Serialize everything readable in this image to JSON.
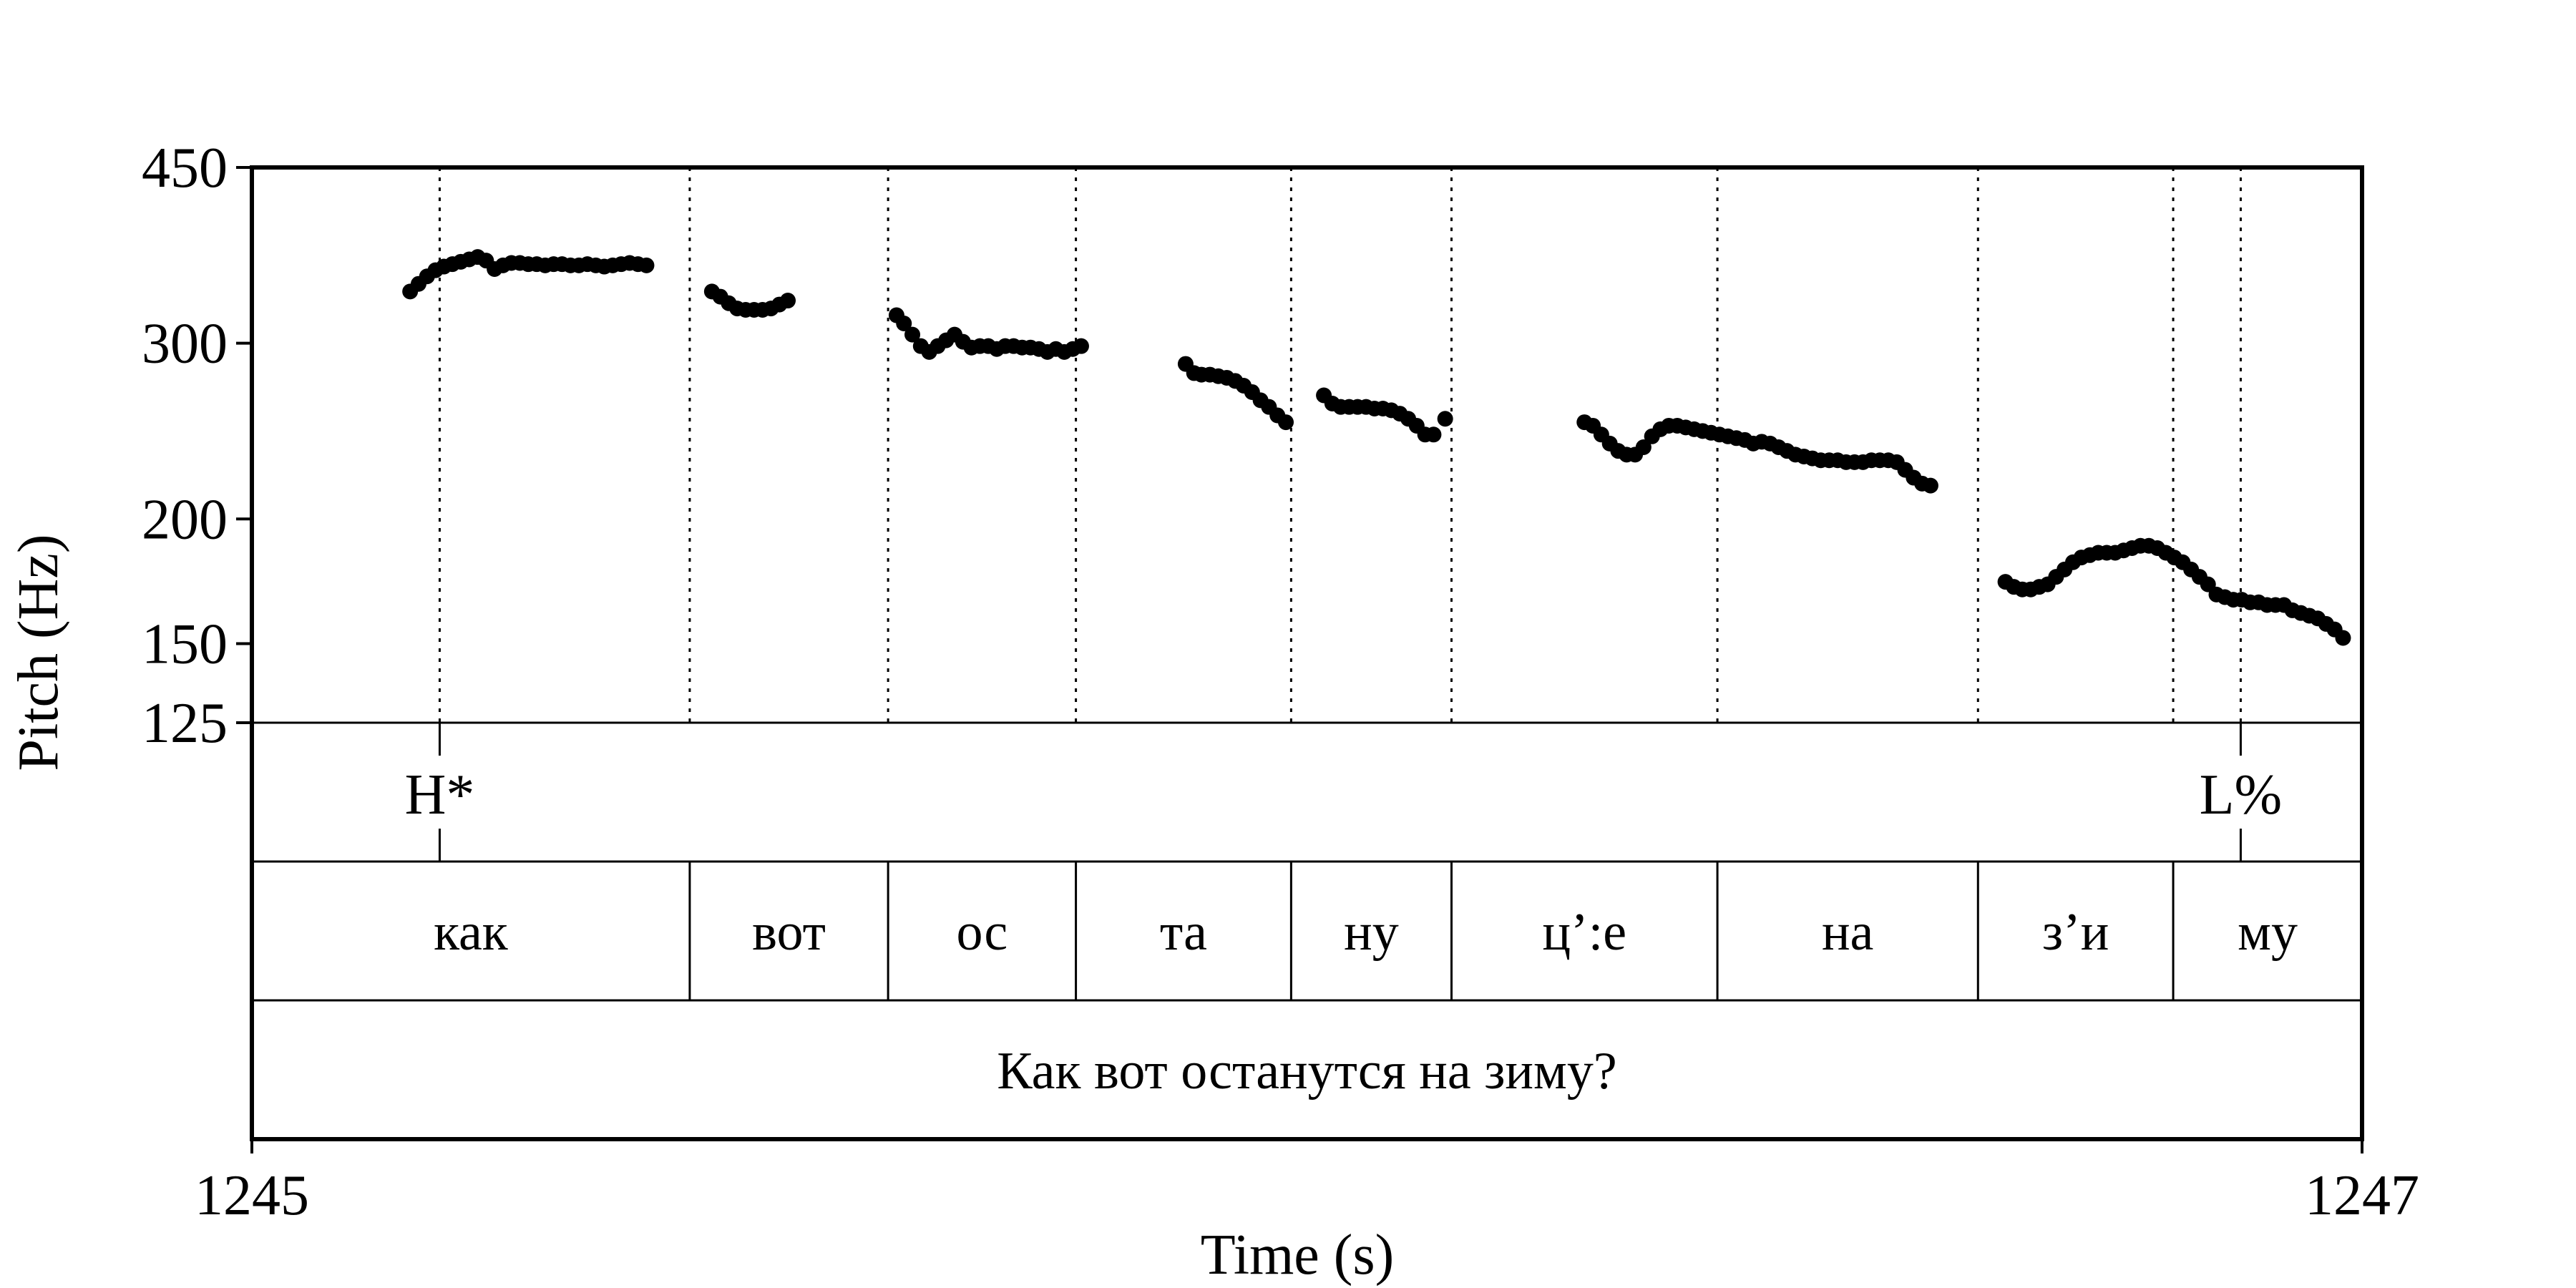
{
  "chart_data": {
    "type": "scatter",
    "title": "",
    "xlabel": "Time (s)",
    "ylabel": "Pitch (Hz)",
    "xlim": [
      1245,
      1247
    ],
    "ylim": [
      125,
      450
    ],
    "y_scale": "log",
    "x_ticks": [
      {
        "value": 1245,
        "label": "1245"
      },
      {
        "value": 1247,
        "label": "1247"
      }
    ],
    "y_ticks": [
      {
        "value": 450,
        "label": "450"
      },
      {
        "value": 300,
        "label": "300"
      },
      {
        "value": 200,
        "label": "200"
      },
      {
        "value": 150,
        "label": "150"
      },
      {
        "value": 125,
        "label": "125"
      }
    ],
    "tone_tier": [
      {
        "time": 1245.178,
        "label": "H*"
      },
      {
        "time": 1246.885,
        "label": "L%"
      }
    ],
    "syllable_tier": [
      {
        "start": 1245.0,
        "end": 1245.415,
        "label": "как"
      },
      {
        "start": 1245.415,
        "end": 1245.603,
        "label": "вот"
      },
      {
        "start": 1245.603,
        "end": 1245.781,
        "label": "ос"
      },
      {
        "start": 1245.781,
        "end": 1245.985,
        "label": "та"
      },
      {
        "start": 1245.985,
        "end": 1246.137,
        "label": "ну"
      },
      {
        "start": 1246.137,
        "end": 1246.389,
        "label": "ц’:е"
      },
      {
        "start": 1246.389,
        "end": 1246.636,
        "label": "на"
      },
      {
        "start": 1246.636,
        "end": 1246.821,
        "label": "з’и"
      },
      {
        "start": 1246.821,
        "end": 1247.0,
        "label": "му"
      }
    ],
    "sentence_tier": [
      {
        "start": 1245.0,
        "end": 1247.0,
        "label": "Как вот останутся на зиму?"
      }
    ],
    "series": [
      {
        "points": [
          [
            1245.15,
            338
          ],
          [
            1245.158,
            344
          ],
          [
            1245.166,
            350
          ],
          [
            1245.174,
            355
          ],
          [
            1245.182,
            358
          ],
          [
            1245.19,
            360
          ],
          [
            1245.198,
            362
          ],
          [
            1245.206,
            364
          ],
          [
            1245.214,
            366
          ],
          [
            1245.222,
            363
          ],
          [
            1245.23,
            356
          ],
          [
            1245.238,
            359
          ],
          [
            1245.246,
            361
          ],
          [
            1245.254,
            361
          ],
          [
            1245.262,
            360
          ],
          [
            1245.27,
            360
          ],
          [
            1245.278,
            359
          ],
          [
            1245.286,
            360
          ],
          [
            1245.294,
            360
          ],
          [
            1245.302,
            359
          ],
          [
            1245.31,
            359
          ],
          [
            1245.318,
            360
          ],
          [
            1245.326,
            359
          ],
          [
            1245.334,
            358
          ],
          [
            1245.342,
            359
          ],
          [
            1245.35,
            360
          ],
          [
            1245.358,
            361
          ],
          [
            1245.366,
            360
          ],
          [
            1245.374,
            359
          ]
        ]
      },
      {
        "points": [
          [
            1245.436,
            338
          ],
          [
            1245.444,
            334
          ],
          [
            1245.452,
            329
          ],
          [
            1245.46,
            325
          ],
          [
            1245.468,
            324
          ],
          [
            1245.476,
            324
          ],
          [
            1245.484,
            324
          ],
          [
            1245.492,
            325
          ],
          [
            1245.5,
            328
          ],
          [
            1245.508,
            331
          ]
        ]
      },
      {
        "points": [
          [
            1245.611,
            320
          ],
          [
            1245.618,
            314
          ],
          [
            1245.626,
            306
          ],
          [
            1245.634,
            298
          ],
          [
            1245.642,
            294
          ],
          [
            1245.65,
            298
          ],
          [
            1245.658,
            302
          ],
          [
            1245.666,
            306
          ],
          [
            1245.674,
            301
          ],
          [
            1245.682,
            297
          ],
          [
            1245.69,
            298
          ],
          [
            1245.698,
            298
          ],
          [
            1245.706,
            296
          ],
          [
            1245.714,
            298
          ],
          [
            1245.722,
            298
          ],
          [
            1245.73,
            297
          ],
          [
            1245.738,
            297
          ],
          [
            1245.746,
            296
          ],
          [
            1245.754,
            294
          ],
          [
            1245.762,
            296
          ],
          [
            1245.77,
            294
          ],
          [
            1245.778,
            296
          ],
          [
            1245.786,
            298
          ]
        ]
      },
      {
        "points": [
          [
            1245.885,
            286
          ],
          [
            1245.893,
            280
          ],
          [
            1245.9,
            279
          ],
          [
            1245.908,
            279
          ],
          [
            1245.916,
            278
          ],
          [
            1245.924,
            277
          ],
          [
            1245.932,
            275
          ],
          [
            1245.94,
            272
          ],
          [
            1245.948,
            268
          ],
          [
            1245.956,
            263
          ],
          [
            1245.964,
            259
          ],
          [
            1245.972,
            254
          ],
          [
            1245.98,
            250
          ]
        ]
      },
      {
        "points": [
          [
            1246.016,
            266
          ],
          [
            1246.024,
            261
          ],
          [
            1246.032,
            259
          ],
          [
            1246.04,
            259
          ],
          [
            1246.048,
            259
          ],
          [
            1246.056,
            259
          ],
          [
            1246.064,
            258
          ],
          [
            1246.072,
            258
          ],
          [
            1246.08,
            257
          ],
          [
            1246.088,
            255
          ],
          [
            1246.096,
            252
          ],
          [
            1246.104,
            248
          ],
          [
            1246.112,
            243
          ],
          [
            1246.12,
            243
          ],
          [
            1246.131,
            252
          ]
        ]
      },
      {
        "points": [
          [
            1246.263,
            250
          ],
          [
            1246.271,
            248
          ],
          [
            1246.279,
            243
          ],
          [
            1246.287,
            238
          ],
          [
            1246.295,
            234
          ],
          [
            1246.303,
            232
          ],
          [
            1246.311,
            232
          ],
          [
            1246.319,
            236
          ],
          [
            1246.327,
            242
          ],
          [
            1246.335,
            246
          ],
          [
            1246.343,
            248
          ],
          [
            1246.351,
            248
          ],
          [
            1246.359,
            247
          ],
          [
            1246.367,
            246
          ],
          [
            1246.375,
            245
          ],
          [
            1246.383,
            244
          ],
          [
            1246.391,
            243
          ],
          [
            1246.399,
            242
          ],
          [
            1246.407,
            241
          ],
          [
            1246.415,
            240
          ],
          [
            1246.423,
            238
          ],
          [
            1246.431,
            239
          ],
          [
            1246.439,
            238
          ],
          [
            1246.447,
            236
          ],
          [
            1246.455,
            234
          ],
          [
            1246.463,
            232
          ],
          [
            1246.471,
            231
          ],
          [
            1246.479,
            230
          ],
          [
            1246.487,
            229
          ],
          [
            1246.495,
            229
          ],
          [
            1246.503,
            229
          ],
          [
            1246.511,
            228
          ],
          [
            1246.519,
            228
          ],
          [
            1246.527,
            228
          ],
          [
            1246.535,
            229
          ],
          [
            1246.543,
            229
          ],
          [
            1246.551,
            229
          ],
          [
            1246.559,
            228
          ],
          [
            1246.567,
            224
          ],
          [
            1246.575,
            220
          ],
          [
            1246.583,
            217
          ],
          [
            1246.591,
            216
          ]
        ]
      },
      {
        "points": [
          [
            1246.662,
            173
          ],
          [
            1246.67,
            171
          ],
          [
            1246.678,
            170
          ],
          [
            1246.686,
            170
          ],
          [
            1246.694,
            171
          ],
          [
            1246.702,
            172
          ],
          [
            1246.71,
            175
          ],
          [
            1246.718,
            178
          ],
          [
            1246.726,
            181
          ],
          [
            1246.734,
            183
          ],
          [
            1246.742,
            184
          ],
          [
            1246.75,
            185
          ],
          [
            1246.758,
            185
          ],
          [
            1246.766,
            185
          ],
          [
            1246.774,
            186
          ],
          [
            1246.782,
            187
          ],
          [
            1246.79,
            188
          ],
          [
            1246.798,
            188
          ],
          [
            1246.806,
            187
          ],
          [
            1246.814,
            185
          ],
          [
            1246.822,
            183
          ],
          [
            1246.83,
            181
          ],
          [
            1246.838,
            178
          ],
          [
            1246.846,
            175
          ],
          [
            1246.854,
            172
          ],
          [
            1246.862,
            168
          ],
          [
            1246.87,
            167
          ],
          [
            1246.878,
            166
          ],
          [
            1246.886,
            166
          ],
          [
            1246.894,
            165
          ],
          [
            1246.902,
            165
          ],
          [
            1246.91,
            164
          ],
          [
            1246.918,
            164
          ],
          [
            1246.926,
            164
          ],
          [
            1246.934,
            162
          ],
          [
            1246.942,
            161
          ],
          [
            1246.95,
            160
          ],
          [
            1246.958,
            159
          ],
          [
            1246.966,
            157
          ],
          [
            1246.974,
            155
          ],
          [
            1246.982,
            152
          ]
        ]
      }
    ]
  }
}
